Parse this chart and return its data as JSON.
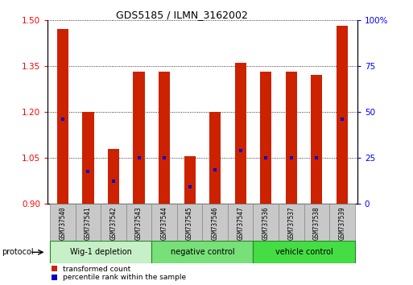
{
  "title": "GDS5185 / ILMN_3162002",
  "samples": [
    "GSM737540",
    "GSM737541",
    "GSM737542",
    "GSM737543",
    "GSM737544",
    "GSM737545",
    "GSM737546",
    "GSM737547",
    "GSM737536",
    "GSM737537",
    "GSM737538",
    "GSM737539"
  ],
  "red_values": [
    1.47,
    1.2,
    1.08,
    1.33,
    1.33,
    1.055,
    1.2,
    1.36,
    1.33,
    1.33,
    1.32,
    1.48
  ],
  "blue_values": [
    1.175,
    1.005,
    0.975,
    1.05,
    1.05,
    0.955,
    1.01,
    1.075,
    1.05,
    1.05,
    1.05,
    1.175
  ],
  "y_min": 0.9,
  "y_max": 1.5,
  "y_ticks_red": [
    0.9,
    1.05,
    1.2,
    1.35,
    1.5
  ],
  "y_ticks_blue_vals": [
    0,
    25,
    50,
    75,
    100
  ],
  "y_ticks_blue_labels": [
    "0",
    "25",
    "50",
    "75",
    "100%"
  ],
  "groups": [
    {
      "label": "Wig-1 depletion",
      "start": 0,
      "end": 3
    },
    {
      "label": "negative control",
      "start": 4,
      "end": 7
    },
    {
      "label": "vehicle control",
      "start": 8,
      "end": 11
    }
  ],
  "group_colors": [
    "#c8f0c8",
    "#78e078",
    "#44dd44"
  ],
  "bar_color": "#cc2200",
  "blue_marker_color": "#0000cc",
  "base_value": 0.9,
  "protocol_label": "protocol",
  "legend_red": "transformed count",
  "legend_blue": "percentile rank within the sample",
  "sample_box_color": "#c8c8c8",
  "bar_width": 0.45
}
